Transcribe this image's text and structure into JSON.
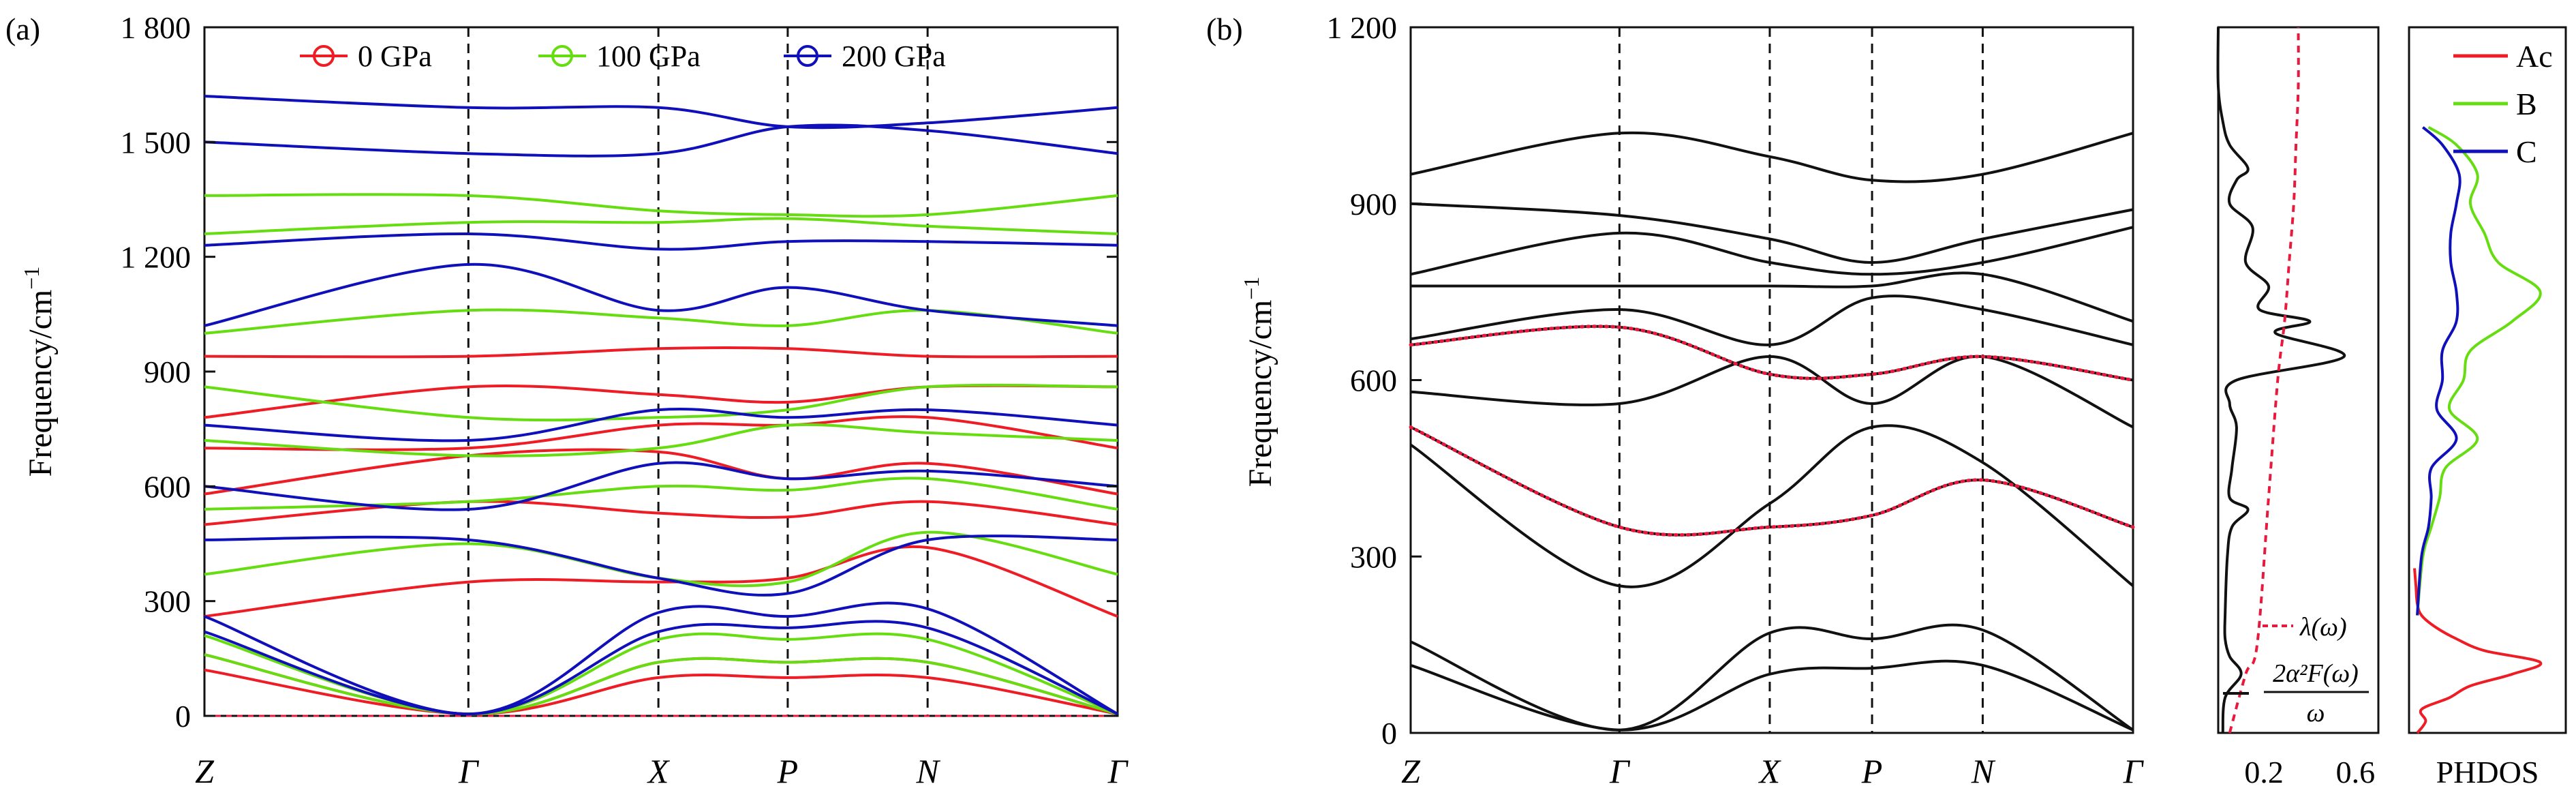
{
  "colors": {
    "p0": "#ee1c24",
    "p100": "#66dd11",
    "p200": "#1010bb",
    "lambda": "#e8193c",
    "black": "#111111"
  },
  "chart_data": [
    {
      "type": "line",
      "panel_label": "(a)",
      "ylabel": "Frequency/cm",
      "ylabel_sup": "−1",
      "ylim": [
        0,
        1800
      ],
      "yticks": [
        0,
        300,
        600,
        900,
        1200,
        1500,
        1800
      ],
      "ytick_labels": [
        "0",
        "300",
        "600",
        "900",
        "1 200",
        "1 500",
        "1 800"
      ],
      "kpath": [
        "Z",
        "Γ",
        "X",
        "P",
        "N",
        "Γ"
      ],
      "kpos": [
        0,
        1,
        1.72,
        2.21,
        2.74,
        3.46
      ],
      "legend": [
        "0 GPa",
        "100 GPa",
        "200 GPa"
      ],
      "legend_placement": "top",
      "zero_line": true,
      "series": [
        {
          "key": "p0",
          "label_index": 0,
          "color_key": "p0",
          "bands": [
            [
              120,
              5,
              100,
              100,
              100,
              5
            ],
            [
              160,
              5,
              140,
              140,
              140,
              5
            ],
            [
              260,
              350,
              350,
              360,
              440,
              260
            ],
            [
              500,
              560,
              530,
              520,
              560,
              500
            ],
            [
              580,
              680,
              690,
              620,
              660,
              580
            ],
            [
              700,
              700,
              760,
              760,
              780,
              700
            ],
            [
              780,
              860,
              840,
              820,
              860,
              860
            ],
            [
              940,
              940,
              960,
              960,
              940,
              940
            ]
          ]
        },
        {
          "key": "p100",
          "label_index": 1,
          "color_key": "p100",
          "bands": [
            [
              160,
              5,
              140,
              140,
              140,
              5
            ],
            [
              210,
              5,
              200,
              200,
              200,
              5
            ],
            [
              370,
              450,
              360,
              350,
              480,
              370
            ],
            [
              540,
              560,
              600,
              590,
              620,
              540
            ],
            [
              720,
              680,
              700,
              760,
              740,
              720
            ],
            [
              860,
              780,
              780,
              800,
              860,
              860
            ],
            [
              1000,
              1060,
              1040,
              1020,
              1060,
              1000
            ],
            [
              1260,
              1290,
              1290,
              1300,
              1280,
              1260
            ],
            [
              1360,
              1360,
              1320,
              1310,
              1310,
              1360
            ]
          ]
        },
        {
          "key": "p200",
          "label_index": 2,
          "color_key": "p200",
          "bands": [
            [
              220,
              5,
              220,
              230,
              230,
              5
            ],
            [
              260,
              5,
              270,
              260,
              280,
              5
            ],
            [
              460,
              460,
              360,
              320,
              460,
              460
            ],
            [
              600,
              540,
              660,
              620,
              640,
              600
            ],
            [
              760,
              720,
              800,
              780,
              800,
              760
            ],
            [
              1020,
              1180,
              1060,
              1120,
              1060,
              1020
            ],
            [
              1230,
              1260,
              1220,
              1240,
              1240,
              1230
            ],
            [
              1500,
              1470,
              1470,
              1540,
              1530,
              1470
            ],
            [
              1620,
              1590,
              1590,
              1540,
              1550,
              1590
            ]
          ]
        }
      ]
    },
    {
      "type": "line",
      "panel_label": "(b)",
      "ylim": [
        0,
        1200
      ],
      "yticks": [
        0,
        300,
        600,
        900,
        1200
      ],
      "ytick_labels": [
        "0",
        "300",
        "600",
        "900",
        "1 200"
      ],
      "ylabel": "Frequency/cm",
      "ylabel_sup": "−1",
      "kpath": [
        "Z",
        "Γ",
        "X",
        "P",
        "N",
        "Γ"
      ],
      "kpos": [
        0,
        1,
        1.72,
        2.21,
        2.74,
        3.46
      ],
      "bands": [
        [
          115,
          5,
          100,
          110,
          115,
          5
        ],
        [
          155,
          5,
          170,
          160,
          175,
          5
        ],
        [
          490,
          250,
          390,
          520,
          460,
          250
        ],
        [
          520,
          350,
          350,
          370,
          430,
          350
        ],
        [
          580,
          560,
          640,
          560,
          640,
          520
        ],
        [
          660,
          690,
          610,
          610,
          640,
          600
        ],
        [
          670,
          720,
          660,
          740,
          720,
          660
        ],
        [
          760,
          760,
          760,
          760,
          780,
          700
        ],
        [
          780,
          850,
          800,
          780,
          800,
          860
        ],
        [
          900,
          880,
          840,
          800,
          840,
          890
        ],
        [
          950,
          1020,
          980,
          940,
          950,
          1020
        ]
      ],
      "highlighted_bands": [
        3,
        5
      ]
    },
    {
      "type": "line",
      "ylim": [
        0,
        1200
      ],
      "xticks": [
        0.2,
        0.6
      ],
      "xtick_labels": [
        "0.2",
        "0.6"
      ],
      "xlim": [
        0,
        0.7
      ],
      "legend": [
        "λ(ω)",
        "2α²F(ω)",
        "ω"
      ],
      "legend_placement": "bottom",
      "alpha2F_over_omega": {
        "freq": [
          0,
          60,
          100,
          130,
          160,
          200,
          300,
          350,
          380,
          400,
          450,
          520,
          560,
          600,
          640,
          680,
          700,
          720,
          760,
          800,
          860,
          900,
          940,
          960,
          1000,
          1040,
          1100,
          1200
        ],
        "values": [
          0.02,
          0.03,
          0.1,
          0.05,
          0.03,
          0.03,
          0.04,
          0.06,
          0.13,
          0.05,
          0.06,
          0.08,
          0.05,
          0.08,
          0.55,
          0.25,
          0.4,
          0.18,
          0.22,
          0.12,
          0.15,
          0.05,
          0.08,
          0.13,
          0.05,
          0.02,
          0,
          0
        ]
      },
      "lambda": {
        "freq": [
          0,
          100,
          150,
          400,
          600,
          700,
          800,
          900,
          1000,
          1100,
          1200
        ],
        "values": [
          0.05,
          0.12,
          0.17,
          0.22,
          0.26,
          0.29,
          0.31,
          0.33,
          0.34,
          0.35,
          0.35
        ]
      }
    },
    {
      "type": "line",
      "xlabel": "PHDOS",
      "ylim": [
        0,
        1200
      ],
      "legend": [
        "Ac",
        "B",
        "C"
      ],
      "legend_placement": "top-right",
      "series": [
        {
          "name": "Ac",
          "color_key": "p0",
          "freq": [
            0,
            20,
            40,
            60,
            80,
            100,
            120,
            140,
            160,
            180,
            200,
            220,
            250,
            280
          ],
          "values": [
            0.02,
            0.08,
            0.05,
            0.25,
            0.4,
            0.7,
            0.9,
            0.5,
            0.3,
            0.15,
            0.05,
            0.02,
            0.01,
            0
          ]
        },
        {
          "name": "B",
          "color_key": "p100",
          "freq": [
            200,
            300,
            350,
            400,
            450,
            500,
            550,
            600,
            650,
            700,
            750,
            800,
            850,
            900,
            950,
            1000,
            1030
          ],
          "values": [
            0.02,
            0.06,
            0.12,
            0.18,
            0.22,
            0.45,
            0.25,
            0.35,
            0.4,
            0.7,
            0.9,
            0.6,
            0.5,
            0.4,
            0.45,
            0.3,
            0.1
          ]
        },
        {
          "name": "C",
          "color_key": "p200",
          "freq": [
            200,
            300,
            350,
            400,
            450,
            500,
            550,
            600,
            650,
            700,
            750,
            800,
            850,
            900,
            950,
            1000,
            1030
          ],
          "values": [
            0.02,
            0.05,
            0.1,
            0.12,
            0.12,
            0.3,
            0.16,
            0.2,
            0.2,
            0.3,
            0.3,
            0.26,
            0.26,
            0.3,
            0.32,
            0.2,
            0.06
          ]
        }
      ]
    }
  ]
}
